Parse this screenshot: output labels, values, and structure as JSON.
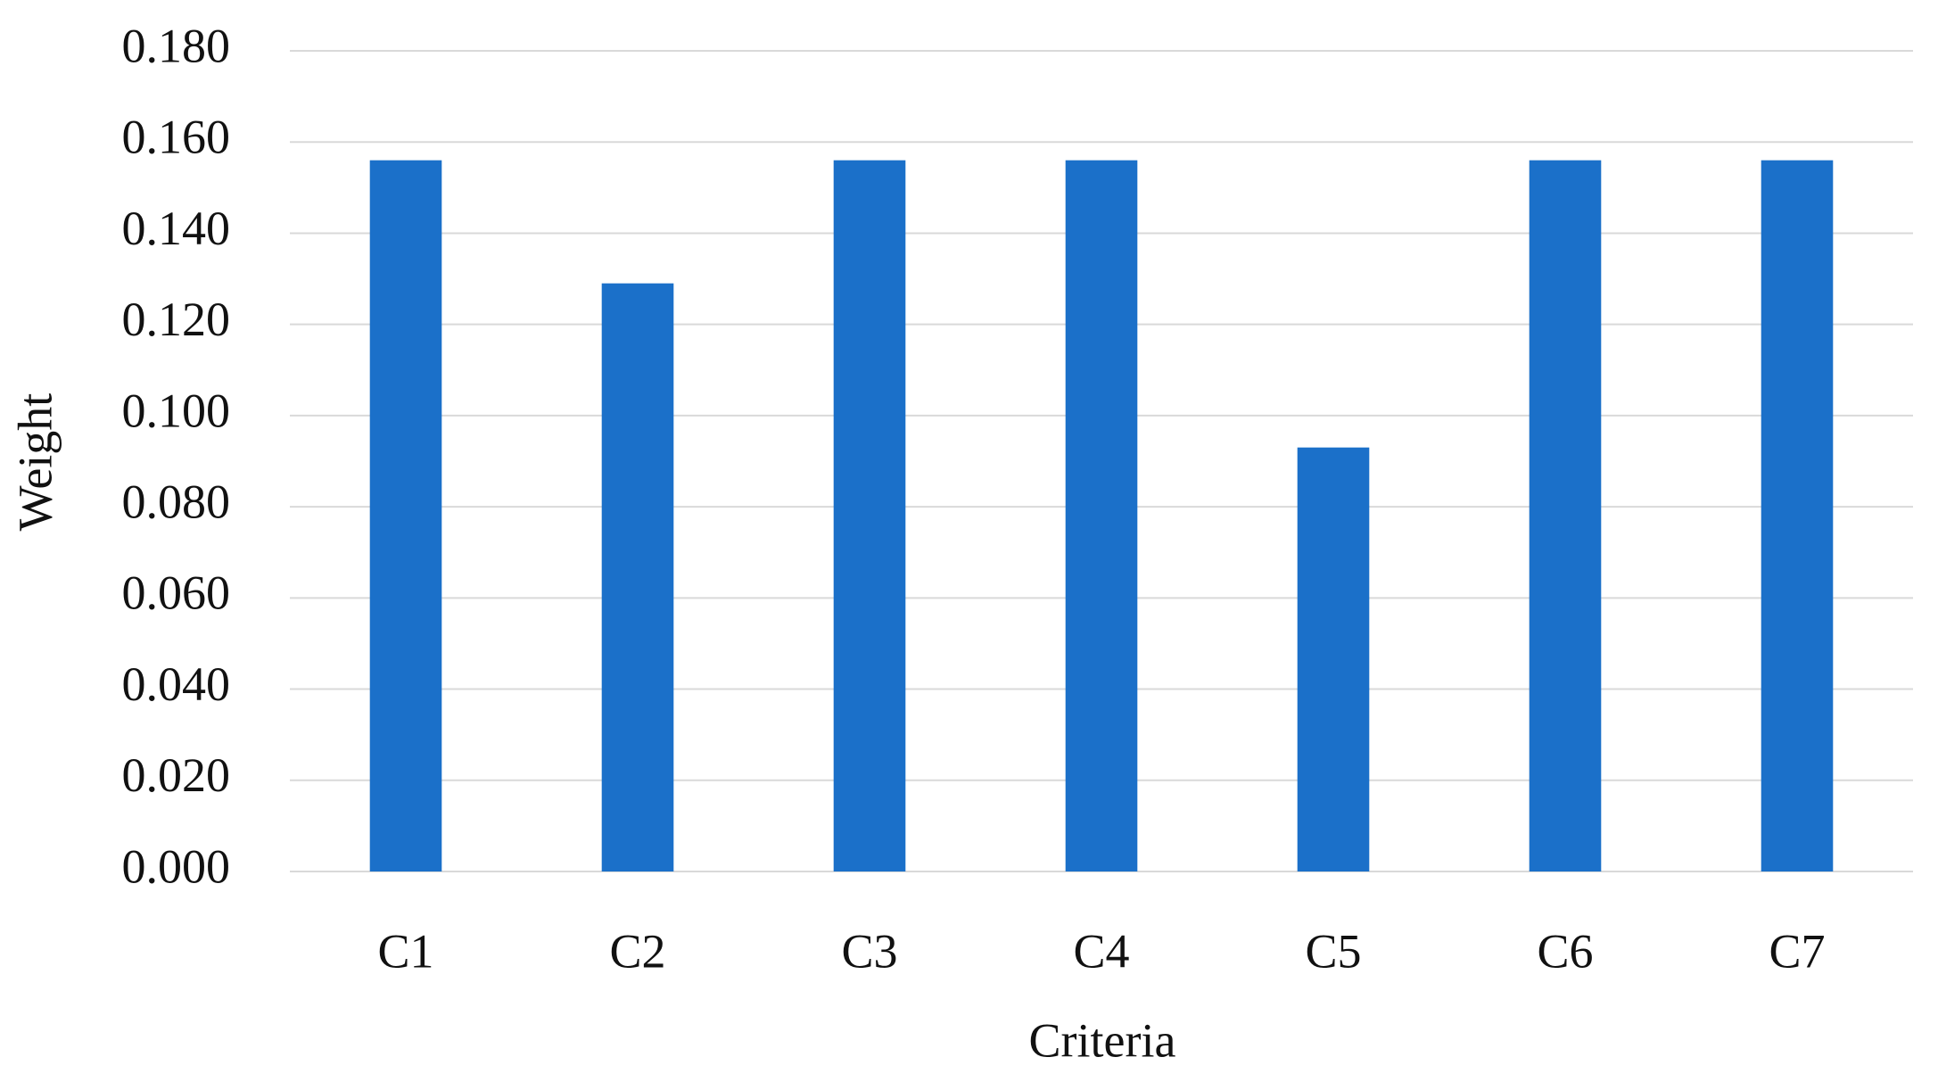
{
  "chart_data": {
    "type": "bar",
    "x_label": "Criteria",
    "y_label": "Weight",
    "categories": [
      "C1",
      "C2",
      "C3",
      "C4",
      "C5",
      "C6",
      "C7"
    ],
    "values": [
      0.156,
      0.129,
      0.156,
      0.156,
      0.093,
      0.156,
      0.156
    ],
    "color": "#1b70c9",
    "ylim": [
      0,
      0.18
    ],
    "yticks": [
      {
        "value": 0,
        "label": "0.000"
      },
      {
        "value": 0.02,
        "label": "0.020"
      },
      {
        "value": 0.04,
        "label": "0.040"
      },
      {
        "value": 0.06,
        "label": "0.060"
      },
      {
        "value": 0.08,
        "label": "0.080"
      },
      {
        "value": 0.1,
        "label": "0.100"
      },
      {
        "value": 0.12,
        "label": "0.120"
      },
      {
        "value": 0.14,
        "label": "0.140"
      },
      {
        "value": 0.16,
        "label": "0.160"
      },
      {
        "value": 0.18,
        "label": "0.180"
      }
    ],
    "grid": true
  }
}
